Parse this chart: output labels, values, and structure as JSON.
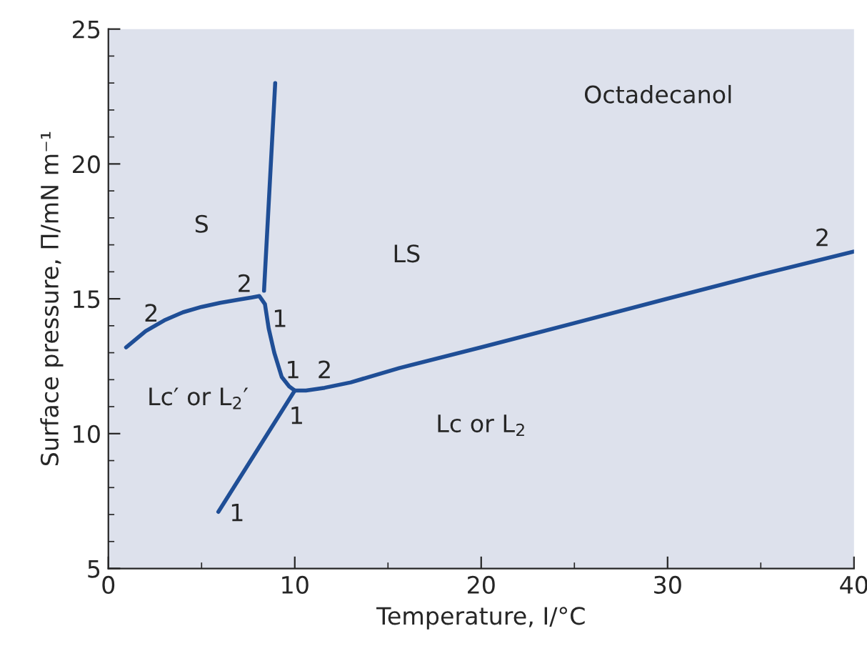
{
  "chart_data": {
    "type": "line",
    "xlabel": "Temperature, I/°C",
    "ylabel": "Surface pressure, Π/mN m⁻¹",
    "xlim": [
      0,
      40
    ],
    "ylim": [
      5,
      25
    ],
    "xticks": [
      0,
      10,
      20,
      30,
      40
    ],
    "yticks": [
      5,
      10,
      15,
      20,
      25
    ],
    "grid": false,
    "legend": false,
    "marker": "none",
    "line_style": "solid",
    "series": [
      {
        "color": "#1f4e96",
        "x": [
          0.95,
          2,
          3,
          4,
          5,
          6,
          7,
          7.7,
          8.1,
          8.4,
          8.6,
          8.9,
          9.3,
          9.7,
          10,
          10.6,
          11.6,
          13,
          15.6,
          20,
          25,
          29.8,
          35,
          40
        ],
        "values": [
          13.2,
          13.8,
          14.2,
          14.5,
          14.7,
          14.85,
          14.97,
          15.05,
          15.1,
          14.8,
          13.9,
          13,
          12.1,
          11.75,
          11.6,
          11.6,
          11.7,
          11.9,
          12.43,
          13.2,
          14.1,
          14.97,
          15.9,
          16.75
        ]
      },
      {
        "color": "#1f4e96",
        "x": [
          8.35,
          8.95
        ],
        "values": [
          15.3,
          23.0
        ]
      },
      {
        "color": "#1f4e96",
        "x": [
          5.9,
          10
        ],
        "values": [
          7.1,
          11.6
        ]
      }
    ],
    "annotations": [
      "2",
      "2",
      "1",
      "1",
      "2",
      "1",
      "1",
      "2",
      "S",
      "LS",
      "Octadecanol",
      "Lc′ or L$_{2}$′",
      "Lc or L$_{2}$"
    ]
  }
}
